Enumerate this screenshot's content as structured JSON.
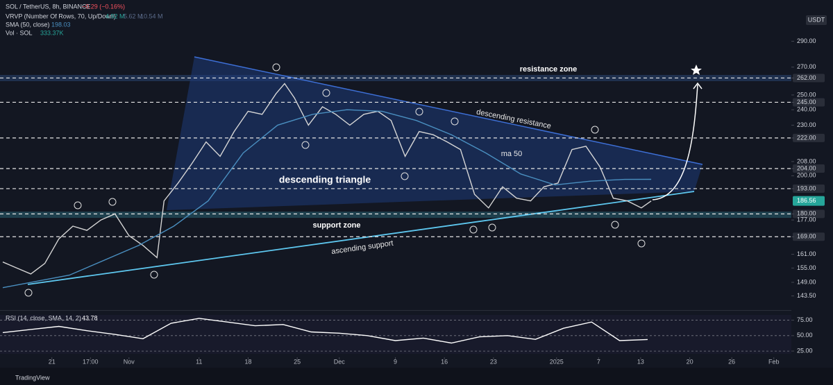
{
  "chart_data": [
    {
      "type": "line",
      "title": "SOL / TetherUS, 8h, BINANCE",
      "change": "−0.29 (−0.16%)",
      "currency": "USDT",
      "log_scale": true,
      "series": [
        {
          "color": "#d6d6d6",
          "x": [
            0,
            2,
            4,
            6,
            8,
            10,
            12,
            14,
            16,
            18,
            20,
            22,
            23,
            25,
            27,
            29,
            31,
            33,
            35,
            37,
            39,
            40.2,
            41.6,
            43.6,
            45.6,
            47.5,
            49.5,
            51.5,
            53.5,
            55.4,
            57.4,
            59.4,
            61.4,
            63.4,
            65.3,
            67.3,
            69.3,
            71.3,
            73.3,
            75.3,
            77.2,
            79.2,
            81.2,
            83.2,
            85.2,
            87.1,
            89.1,
            91.1,
            92.5
          ],
          "values": [
            157.6,
            155,
            152.5,
            157,
            168,
            174,
            172,
            177,
            180,
            169.5,
            165,
            159.5,
            186.6,
            196,
            207,
            219.6,
            211,
            226,
            239,
            237,
            251,
            258,
            248,
            230,
            242,
            237,
            230,
            237,
            239,
            233,
            211,
            226,
            224,
            219.6,
            215,
            190,
            183,
            194,
            188,
            186.6,
            194,
            196,
            215,
            217,
            205,
            188,
            186.6,
            183,
            186.56
          ]
        },
        {
          "name": "SMA (50, close)",
          "color": "#4a8fc0",
          "x": [
            0,
            9.5,
            19.4,
            24.4,
            29.3,
            34.3,
            39.2,
            44.2,
            49.1,
            54.1,
            59,
            64,
            68.9,
            73.9,
            78.8,
            83.8,
            88.7,
            92.5
          ],
          "values": [
            146.8,
            152,
            165,
            174,
            186.6,
            213,
            230,
            237,
            240,
            239,
            233,
            224,
            213,
            201,
            195,
            197,
            198,
            198.03
          ]
        }
      ],
      "xlim": [
        -0.4,
        112.5
      ],
      "xticks": [
        {
          "value": 7,
          "label": "21"
        },
        {
          "value": 12.5,
          "label": "17:00"
        },
        {
          "value": 18,
          "label": "Nov"
        },
        {
          "value": 28,
          "label": "11"
        },
        {
          "value": 35,
          "label": "18"
        },
        {
          "value": 42,
          "label": "25"
        },
        {
          "value": 48,
          "label": "Dec"
        },
        {
          "value": 56,
          "label": "9"
        },
        {
          "value": 63,
          "label": "16"
        },
        {
          "value": 70,
          "label": "23"
        },
        {
          "value": 79,
          "label": "2025"
        },
        {
          "value": 85,
          "label": "7"
        },
        {
          "value": 91,
          "label": "13"
        },
        {
          "value": 98,
          "label": "20"
        },
        {
          "value": 104,
          "label": "26"
        },
        {
          "value": 110,
          "label": "Feb"
        }
      ],
      "ylim": [
        138,
        325
      ],
      "yticks": [
        {
          "value": 290,
          "label": "290.00"
        },
        {
          "value": 270,
          "label": "270.00"
        },
        {
          "value": 262,
          "label": "262.00"
        },
        {
          "value": 250,
          "label": "250.00"
        },
        {
          "value": 245,
          "label": "245.00"
        },
        {
          "value": 240,
          "label": "240.00"
        },
        {
          "value": 230,
          "label": "230.00"
        },
        {
          "value": 222,
          "label": "222.00"
        },
        {
          "value": 208,
          "label": "208.00"
        },
        {
          "value": 204,
          "label": "204.00"
        },
        {
          "value": 200,
          "label": "200.00"
        },
        {
          "value": 193,
          "label": "193.00"
        },
        {
          "value": 180,
          "label": "180.00"
        },
        {
          "value": 177,
          "label": "177.00"
        },
        {
          "value": 169,
          "label": "169.00"
        },
        {
          "value": 161,
          "label": "161.00"
        },
        {
          "value": 155,
          "label": "155.00"
        },
        {
          "value": 149,
          "label": "149.00"
        },
        {
          "value": 143.5,
          "label": "143.50"
        }
      ],
      "levels": [
        262,
        245,
        222,
        204,
        193,
        180,
        169
      ],
      "indicators": [
        {
          "name": "VRVP (Number Of Rows, 70, Up/Down)",
          "values": [
            "4.92 M",
            "5.62 M",
            "10.54 M"
          ]
        },
        {
          "name": "Vol · SOL",
          "values": [
            "333.37K"
          ]
        }
      ],
      "annotations": [
        "resistance zone",
        "descending resistance",
        "ma 50",
        "descending triangle",
        "support zone",
        "ascending support"
      ]
    },
    {
      "type": "line",
      "title": "RSI (14, close, SMA, 14, 2)",
      "series": [
        {
          "color": "#ffffff",
          "x": [
            0,
            4,
            8,
            12,
            16,
            20,
            24,
            28,
            32,
            36,
            40,
            44,
            48,
            52,
            56,
            60,
            64,
            68,
            72,
            76,
            80,
            84,
            88,
            92
          ],
          "values": [
            55,
            60,
            65,
            58,
            52,
            45,
            70,
            78,
            72,
            66,
            68,
            56,
            54,
            50,
            42,
            46,
            38,
            48,
            50,
            44,
            62,
            72,
            42,
            43.78
          ]
        }
      ],
      "xlim": [
        -0.4,
        112.5
      ],
      "ylim": [
        15,
        88
      ],
      "yticks": [
        {
          "value": 75,
          "label": "75.00"
        },
        {
          "value": 50,
          "label": "50.00"
        },
        {
          "value": 25,
          "label": "25.00"
        }
      ]
    }
  ],
  "footer": "TradingView"
}
